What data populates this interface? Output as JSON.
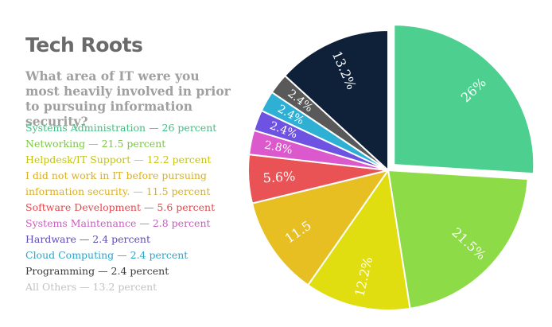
{
  "chart_data": {
    "type": "pie",
    "title": "Tech Roots",
    "subtitle": "What area of IT were you most heavily involved in prior to pursuing information security?",
    "slices": [
      {
        "name": "Systems Administration",
        "value": 26,
        "label": "26%",
        "legend": "Systems Administration — 26 percent",
        "color": "#4dd08f",
        "legend_color": "#3fc082",
        "label_color": "#ffffff"
      },
      {
        "name": "Networking",
        "value": 21.5,
        "label": "21.5%",
        "legend": "Networking — 21.5  percent",
        "color": "#8ddc47",
        "legend_color": "#7ac83c",
        "label_color": "#ffffff"
      },
      {
        "name": "Helpdesk/IT Support",
        "value": 12.2,
        "label": "12.2%",
        "legend": "Helpdesk/IT Support — 12.2 percent",
        "color": "#e0dd10",
        "legend_color": "#c4c416",
        "label_color": "#ffffff"
      },
      {
        "name": "I did not work in IT before pursuing information security.",
        "value": 11.5,
        "label": "11.5",
        "legend": "I did not work in IT before pursuing information security. — 11.5 percent",
        "color": "#e8bf22",
        "legend_color": "#d9b020",
        "label_color": "#ffffff"
      },
      {
        "name": "Software Development",
        "value": 5.6,
        "label": "5.6%",
        "legend": "Software Development — 5.6 percent",
        "color": "#ea5356",
        "legend_color": "#e2484b",
        "label_color": "#ffffff"
      },
      {
        "name": "Systems Maintenance",
        "value": 2.8,
        "label": "2.8%",
        "legend": "Systems Maintenance — 2.8 percent",
        "color": "#dc59cd",
        "legend_color": "#c85cc0",
        "label_color": "#ffffff"
      },
      {
        "name": "Hardware",
        "value": 2.4,
        "label": "2.4%",
        "legend": "Hardware — 2.4 percent",
        "color": "#6e52e2",
        "legend_color": "#5b4dbb",
        "label_color": "#ffffff"
      },
      {
        "name": "Cloud Computing",
        "value": 2.4,
        "label": "2.4%",
        "legend": "Cloud Computing — 2.4 percent",
        "color": "#2eafd4",
        "legend_color": "#2aa5c8",
        "label_color": "#ffffff"
      },
      {
        "name": "Programming",
        "value": 2.4,
        "label": "2.4%",
        "legend": "Programming — 2.4 percent",
        "color": "#595959",
        "legend_color": "#3a3a3a",
        "label_color": "#ffffff"
      },
      {
        "name": "All Others",
        "value": 13.2,
        "label": "13.2%",
        "legend": "All Others — 13.2 percent",
        "color": "#0f2039",
        "legend_color": "#c2c2c2",
        "label_color": "#ffffff"
      }
    ],
    "start_angle_deg": 0,
    "direction": "clockwise",
    "exploded_slice": "Systems Administration"
  }
}
